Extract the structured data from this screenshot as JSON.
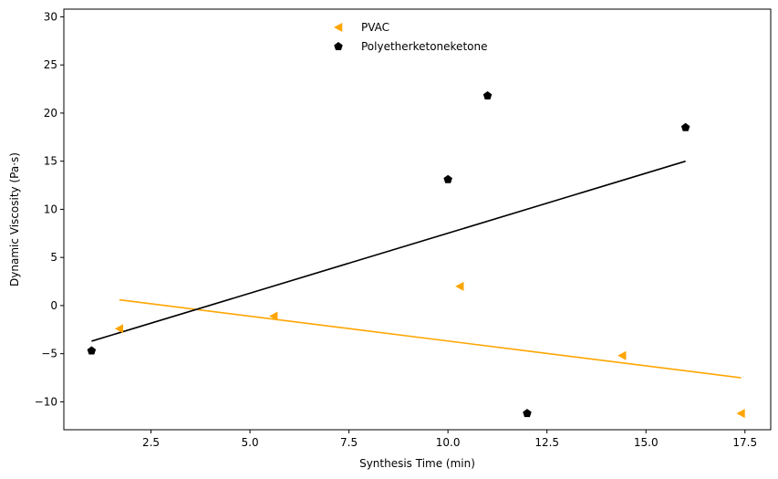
{
  "chart_data": {
    "type": "scatter",
    "title": "",
    "xlabel": "Synthesis Time (min)",
    "ylabel": "Dynamic Viscosity (Pa·s)",
    "xlim": [
      0.3,
      18.15
    ],
    "ylim": [
      -12.9,
      30.8
    ],
    "xticks": [
      2.5,
      5.0,
      7.5,
      10.0,
      12.5,
      15.0,
      17.5
    ],
    "xtick_labels": [
      "2.5",
      "5.0",
      "7.5",
      "10.0",
      "12.5",
      "15.0",
      "17.5"
    ],
    "yticks": [
      -10,
      -5,
      0,
      5,
      10,
      15,
      20,
      25,
      30
    ],
    "ytick_labels": [
      "−10",
      "−5",
      "0",
      "5",
      "10",
      "15",
      "20",
      "25",
      "30"
    ],
    "grid": false,
    "legend_position": "upper-center",
    "series": [
      {
        "name": "PVAC",
        "color": "#FFA500",
        "marker": "triangle-left",
        "points": [
          [
            1.7,
            -2.4
          ],
          [
            5.6,
            -1.1
          ],
          [
            10.3,
            2.0
          ],
          [
            14.4,
            -5.2
          ],
          [
            17.4,
            -11.2
          ]
        ],
        "trend": [
          [
            1.7,
            0.6
          ],
          [
            17.4,
            -7.5
          ]
        ]
      },
      {
        "name": "Polyetherketoneketone",
        "color": "#000000",
        "marker": "pentagon",
        "points": [
          [
            1.0,
            -4.7
          ],
          [
            10.0,
            13.1
          ],
          [
            11.0,
            21.8
          ],
          [
            12.0,
            -11.2
          ],
          [
            16.0,
            18.5
          ]
        ],
        "trend": [
          [
            1.0,
            -3.7
          ],
          [
            16.0,
            15.0
          ]
        ]
      }
    ]
  }
}
